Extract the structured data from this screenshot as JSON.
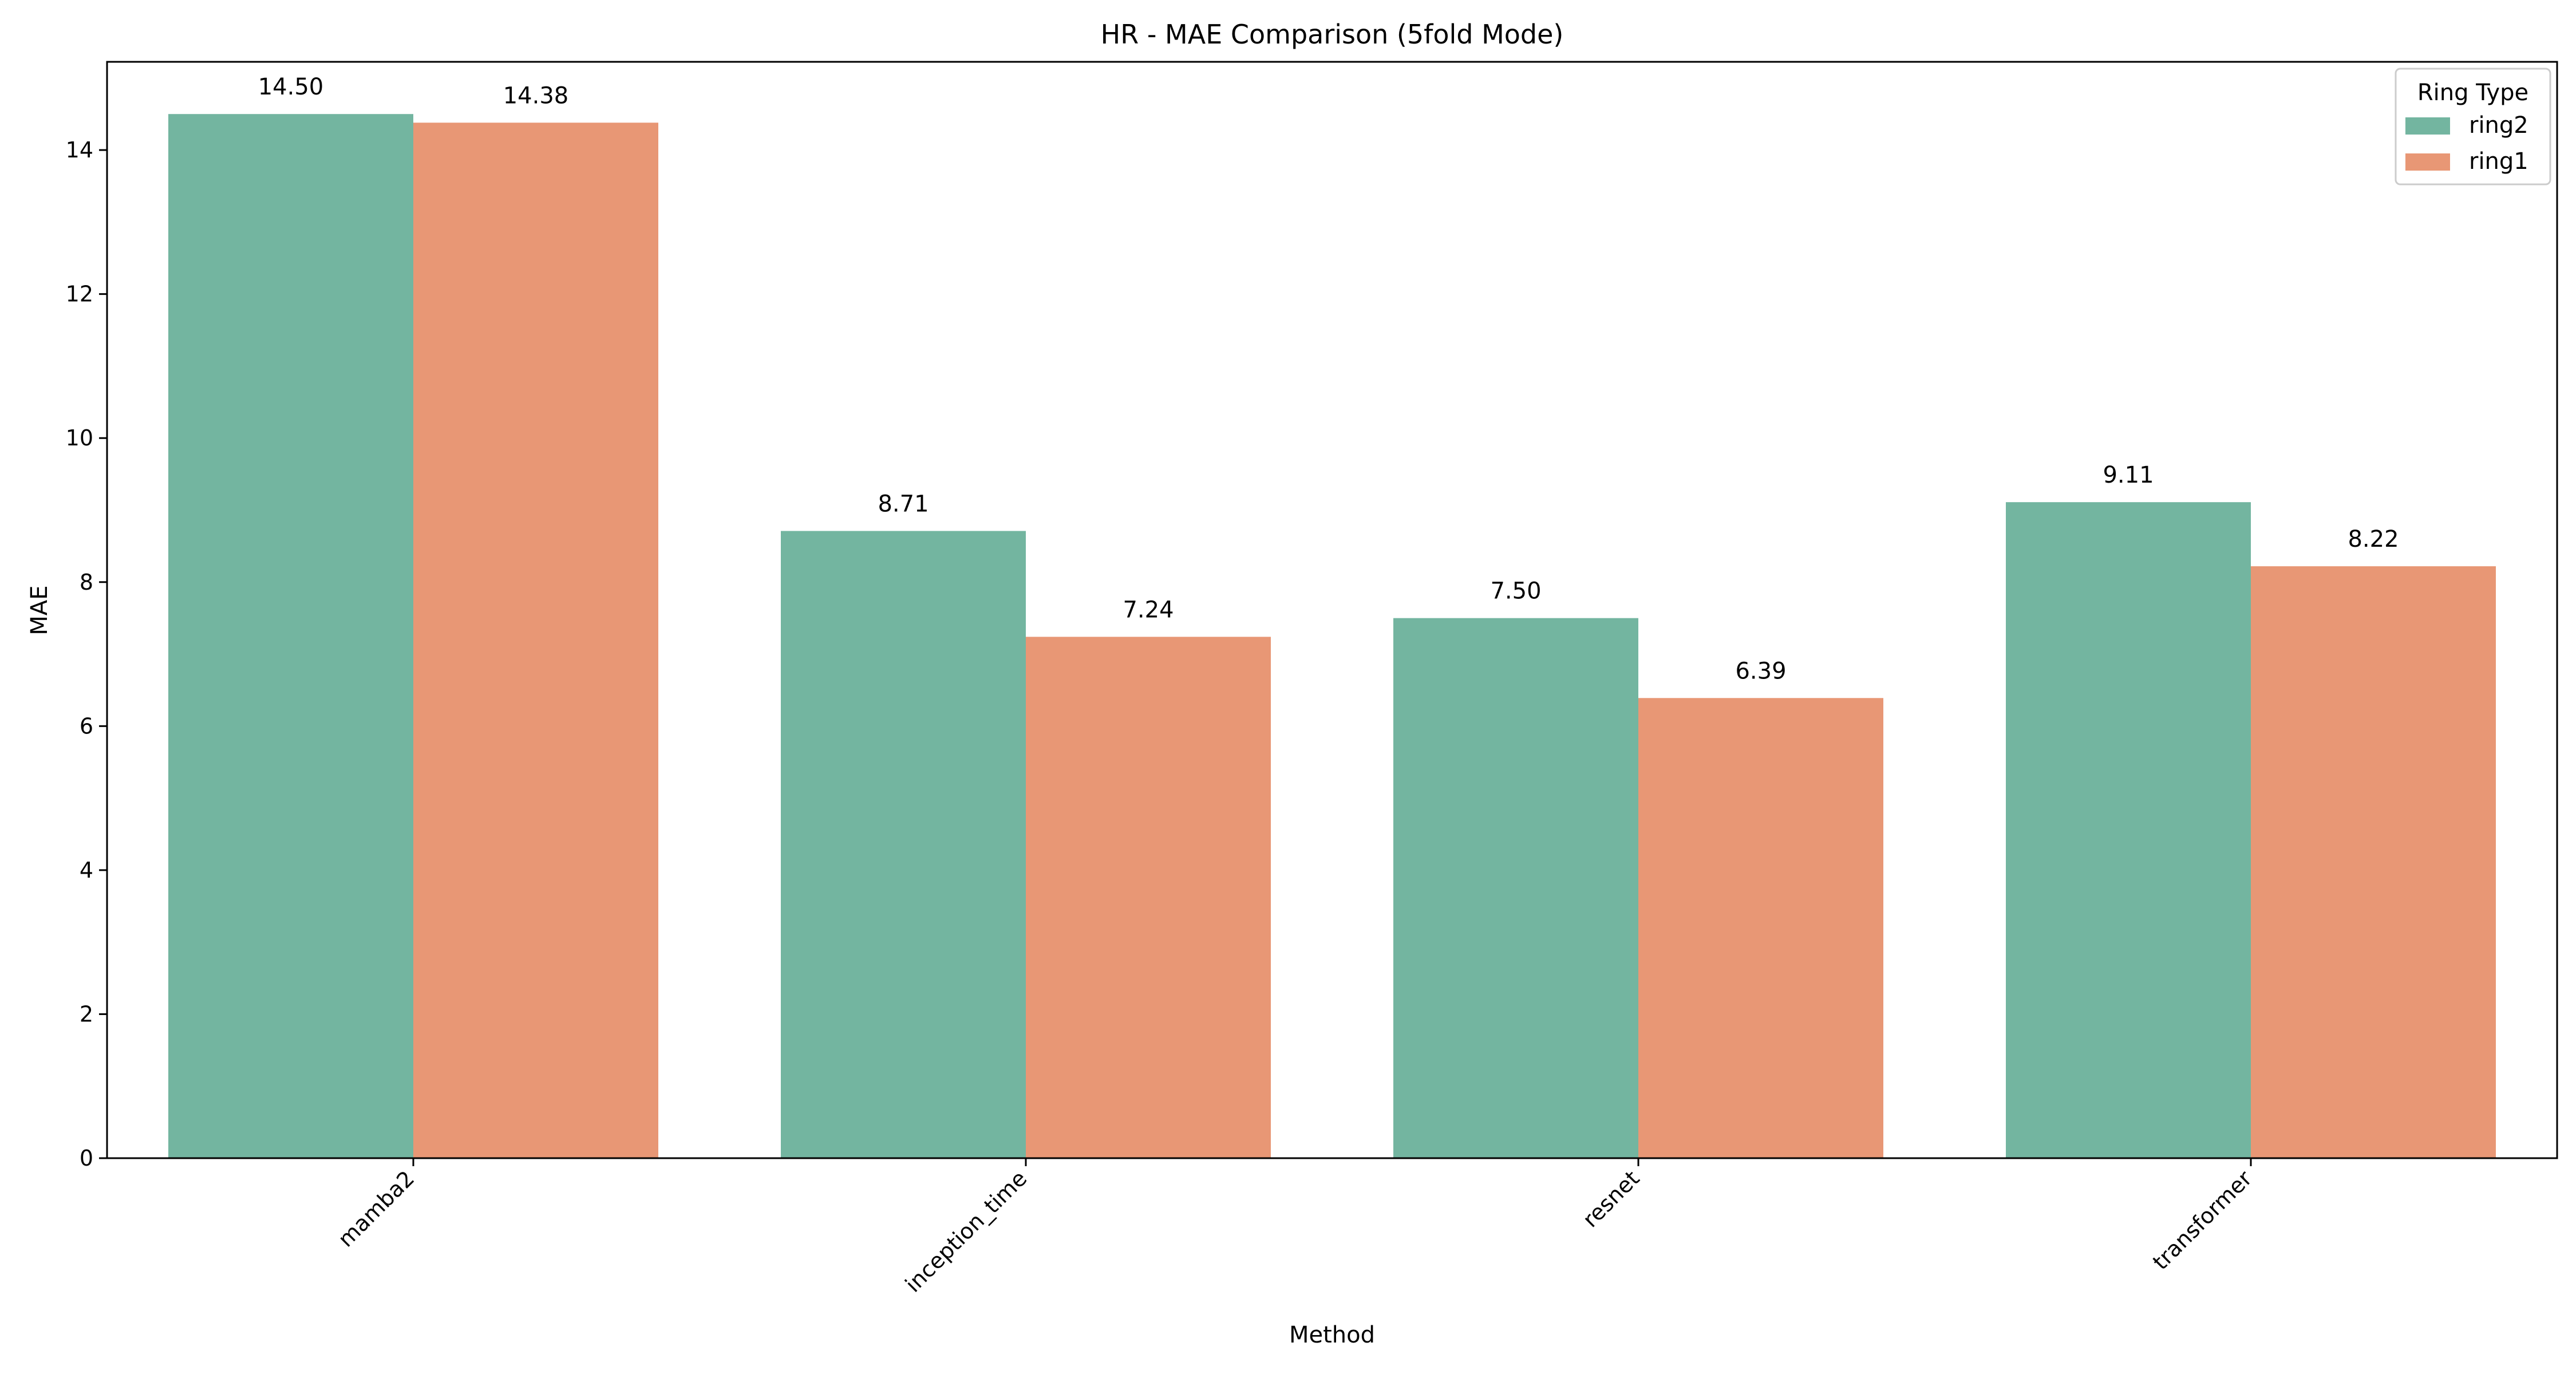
{
  "chart_data": {
    "type": "bar",
    "title": "HR - MAE Comparison (5fold Mode)",
    "xlabel": "Method",
    "ylabel": "MAE",
    "categories": [
      "mamba2",
      "inception_time",
      "resnet",
      "transformer"
    ],
    "series": [
      {
        "name": "ring2",
        "color": "#73b5a0",
        "values": [
          14.5,
          8.71,
          7.5,
          9.11
        ]
      },
      {
        "name": "ring1",
        "color": "#e89775",
        "values": [
          14.38,
          7.24,
          6.39,
          8.22
        ]
      }
    ],
    "ylim": [
      0,
      15.225
    ],
    "yticks": [
      0,
      2,
      4,
      6,
      8,
      10,
      12,
      14
    ],
    "value_format": "0.00",
    "grid": false,
    "legend": {
      "title": "Ring Type",
      "placement": "top-right"
    },
    "x_tick_rotation": "45 degrees"
  }
}
